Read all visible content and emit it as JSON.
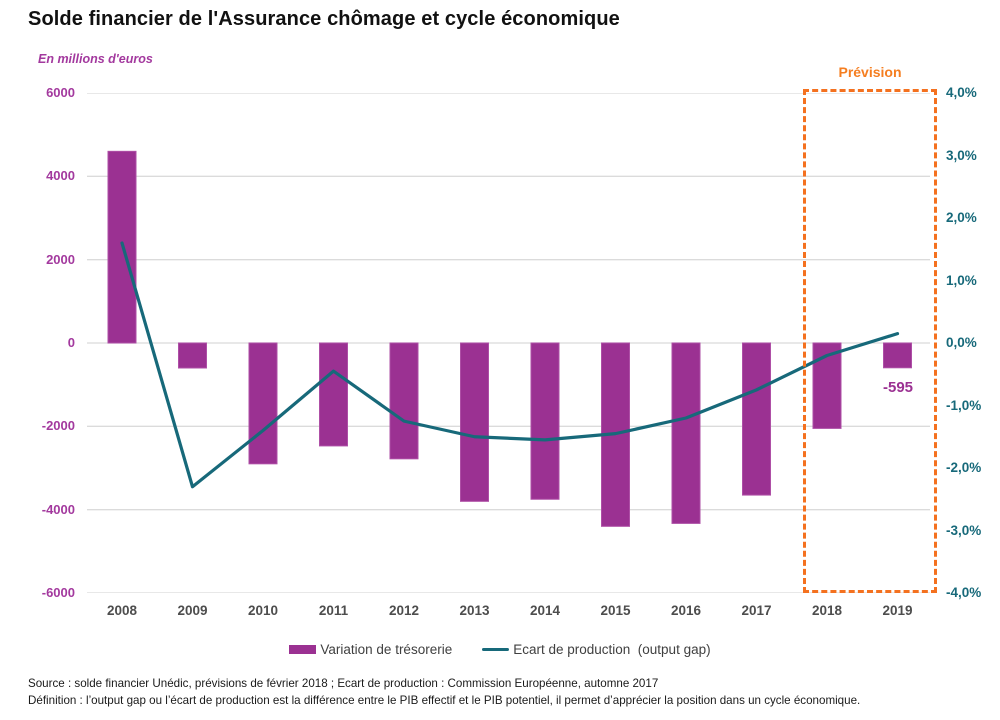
{
  "title": "Solde financier de l'Assurance chômage et cycle économique",
  "unit_label": "En millions d'euros",
  "prevision": {
    "label": "Prévision",
    "years": [
      "2018",
      "2019"
    ]
  },
  "annotations": {
    "bar_2019": "-595"
  },
  "legend": {
    "items": [
      {
        "label": "Variation de trésorerie",
        "type": "bar",
        "color": "#9B3192"
      },
      {
        "label": "Ecart de production  (output gap)",
        "type": "line",
        "color": "#17697A"
      }
    ]
  },
  "source": {
    "line1": "Source : solde financier Unédic, prévisions de février 2018 ; Ecart de production : Commission Européenne, automne 2017",
    "line2": "Définition : l’output gap ou l’écart de production est la différence entre le PIB effectif et le PIB potentiel, il permet d’apprécier la position dans un cycle économique."
  },
  "colors": {
    "bar": "#9B3192",
    "bar_border": "#AE4FA6",
    "line": "#17697A",
    "grid": "#DBDBDB",
    "prevision_orange": "#F4711F",
    "left_axis_text": "#A3399E",
    "right_axis_text": "#17697A",
    "year_text": "#4D4D4D"
  },
  "chart_data": {
    "type": "bar",
    "subtype": "combo bar+line, dual axis",
    "title": "Solde financier de l'Assurance chômage et cycle économique",
    "categories": [
      "2008",
      "2009",
      "2010",
      "2011",
      "2012",
      "2013",
      "2014",
      "2015",
      "2016",
      "2017",
      "2018",
      "2019"
    ],
    "series": [
      {
        "name": "Variation de trésorerie",
        "type": "bar",
        "axis": "left",
        "unit": "millions d'euros",
        "color": "#9B3192",
        "values": [
          4600,
          -600,
          -2900,
          -2470,
          -2780,
          -3800,
          -3750,
          -4400,
          -4330,
          -3650,
          -2050,
          -595
        ]
      },
      {
        "name": "Ecart de production (output gap)",
        "type": "line",
        "axis": "right",
        "unit": "%",
        "color": "#17697A",
        "values": [
          1.6,
          -2.3,
          -1.4,
          -0.45,
          -1.25,
          -1.5,
          -1.55,
          -1.45,
          -1.2,
          -0.75,
          -0.2,
          0.15
        ]
      }
    ],
    "left_axis": {
      "title": "En millions d'euros",
      "tick_values": [
        6000,
        4000,
        2000,
        0,
        -2000,
        -4000,
        -6000
      ],
      "tick_labels": [
        "6000",
        "4000",
        "2000",
        "0",
        "-2000",
        "-4000",
        "-6000"
      ],
      "range": [
        -6000,
        6000
      ]
    },
    "right_axis": {
      "tick_values": [
        4,
        3,
        2,
        1,
        0,
        -1,
        -2,
        -3,
        -4
      ],
      "tick_labels": [
        "4,0%",
        "3,0%",
        "2,0%",
        "1,0%",
        "0,0%",
        "-1,0%",
        "-2,0%",
        "-3,0%",
        "-4,0%"
      ],
      "range": [
        -4,
        4
      ]
    },
    "grid": true,
    "legend_position": "bottom",
    "forecast_window": {
      "label": "Prévision",
      "categories": [
        "2018",
        "2019"
      ]
    },
    "point_label": {
      "series": "Variation de trésorerie",
      "category": "2019",
      "text": "-595"
    }
  }
}
